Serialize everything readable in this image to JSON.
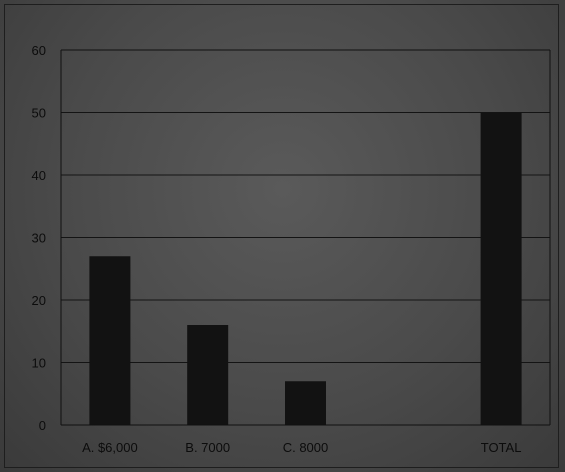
{
  "chart_data": {
    "type": "bar",
    "categories": [
      "A. $6,000",
      "B. 7000",
      "C. 8000",
      "",
      "TOTAL"
    ],
    "values": [
      27,
      16,
      7,
      null,
      50
    ],
    "title": "",
    "xlabel": "",
    "ylabel": "",
    "ylim": [
      0,
      60
    ],
    "yticks": [
      0,
      10,
      20,
      30,
      40,
      50,
      60
    ],
    "grid": true,
    "legend": "none",
    "colors": {
      "bar": "#121212",
      "grid": "#141414",
      "axis": "#101010",
      "text": "#0c0c0c"
    }
  }
}
